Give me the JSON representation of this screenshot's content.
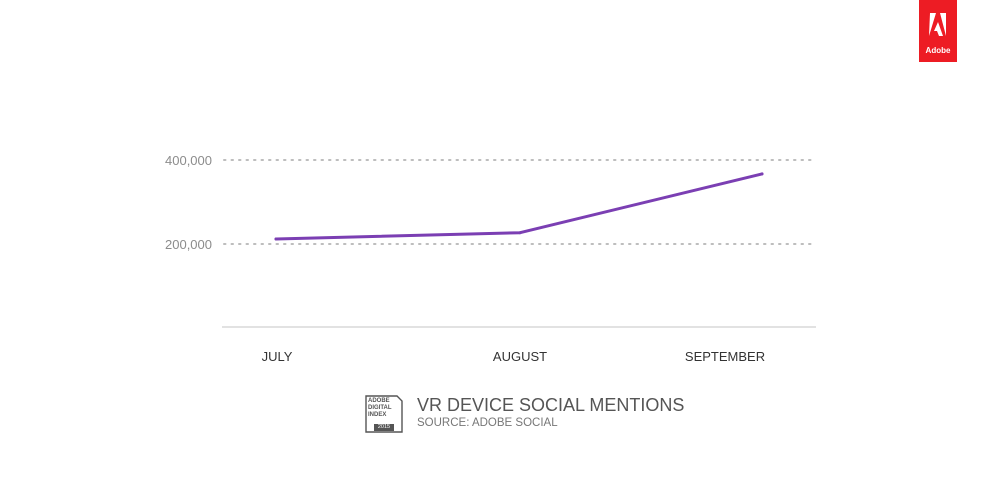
{
  "brand": {
    "logo_text": "Adobe",
    "logo_color": "#ed1c24"
  },
  "chart_data": {
    "type": "line",
    "categories": [
      "JULY",
      "AUGUST",
      "SEPTEMBER"
    ],
    "series": [
      {
        "name": "",
        "values": [
          212000,
          227000,
          367000
        ]
      }
    ],
    "yticks": [
      200000,
      400000
    ],
    "ytick_labels": [
      "200,000",
      "400,000"
    ],
    "ylim": [
      0,
      400000
    ],
    "grid": "dotted horizontal",
    "line_color": "#7b3fb3",
    "title": "VR DEVICE SOCIAL MENTIONS",
    "source": "SOURCE: ADOBE SOCIAL"
  },
  "badge": {
    "line1": "ADOBE",
    "line2": "DIGITAL",
    "line3": "INDEX",
    "year": "2015"
  }
}
